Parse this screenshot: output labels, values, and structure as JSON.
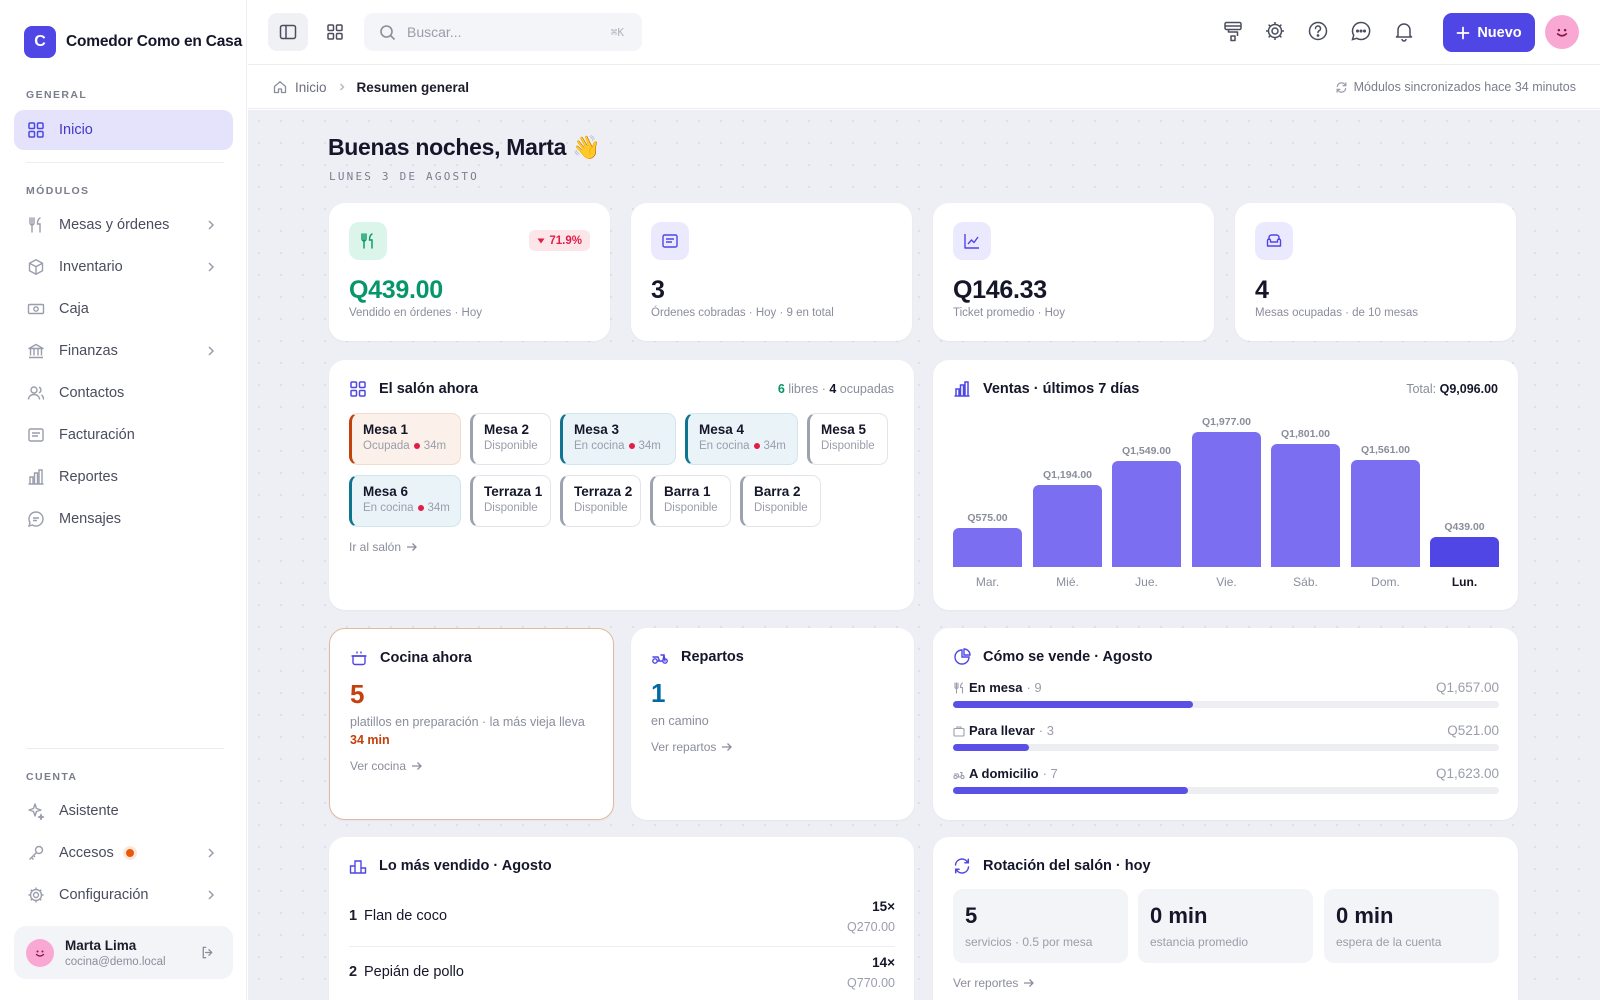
{
  "brand": {
    "initial": "C",
    "name": "Comedor Como en Casa"
  },
  "sidebar": {
    "general_label": "GENERAL",
    "modules_label": "MÓDULOS",
    "account_label": "CUENTA",
    "general_items": [
      {
        "label": "Inicio",
        "icon": "grid-icon"
      }
    ],
    "module_items": [
      {
        "label": "Mesas y órdenes",
        "icon": "utensils-icon"
      },
      {
        "label": "Inventario",
        "icon": "box-icon"
      },
      {
        "label": "Caja",
        "icon": "cash-icon"
      },
      {
        "label": "Finanzas",
        "icon": "bank-icon"
      },
      {
        "label": "Contactos",
        "icon": "users-icon"
      },
      {
        "label": "Facturación",
        "icon": "invoice-icon"
      },
      {
        "label": "Reportes",
        "icon": "bar-chart-icon"
      },
      {
        "label": "Mensajes",
        "icon": "message-icon"
      }
    ],
    "account_items": [
      {
        "label": "Asistente",
        "icon": "sparkle-icon"
      },
      {
        "label": "Accesos",
        "icon": "key-icon"
      },
      {
        "label": "Configuración",
        "icon": "gear-icon"
      }
    ],
    "user": {
      "name": "Marta Lima",
      "email": "cocina@demo.local"
    }
  },
  "topbar": {
    "search_placeholder": "Buscar...",
    "search_shortcut": "⌘K",
    "new_label": "Nuevo"
  },
  "breadcrumb": {
    "root": "Inicio",
    "current": "Resumen general",
    "sync": "Módulos sincronizados hace 34 minutos"
  },
  "greeting": {
    "title": "Buenas noches, Marta 👋",
    "date": "LUNES 3 DE AGOSTO"
  },
  "kpis": [
    {
      "value": "Q439.00",
      "sub": "Vendido en órdenes · Hoy",
      "delta": "71.9%",
      "color": "#059669"
    },
    {
      "value": "3",
      "sub": "Órdenes cobradas · Hoy · 9 en total"
    },
    {
      "value": "Q146.33",
      "sub": "Ticket promedio · Hoy"
    },
    {
      "value": "4",
      "sub": "Mesas ocupadas · de 10 mesas"
    }
  ],
  "salon": {
    "title": "El salón ahora",
    "free_count": "6",
    "free_label": "libres",
    "occupied_count": "4",
    "occupied_label": "ocupadas",
    "link": "Ir al salón",
    "tables": [
      {
        "name": "Mesa 1",
        "status": "Ocupada",
        "time": "34m",
        "state": "occupied"
      },
      {
        "name": "Mesa 2",
        "status": "Disponible",
        "time": "",
        "state": "free"
      },
      {
        "name": "Mesa 3",
        "status": "En cocina",
        "time": "34m",
        "state": "kitchen"
      },
      {
        "name": "Mesa 4",
        "status": "En cocina",
        "time": "34m",
        "state": "kitchen"
      },
      {
        "name": "Mesa 5",
        "status": "Disponible",
        "time": "",
        "state": "free"
      },
      {
        "name": "Mesa 6",
        "status": "En cocina",
        "time": "34m",
        "state": "kitchen"
      },
      {
        "name": "Terraza 1",
        "status": "Disponible",
        "time": "",
        "state": "free"
      },
      {
        "name": "Terraza 2",
        "status": "Disponible",
        "time": "",
        "state": "free"
      },
      {
        "name": "Barra 1",
        "status": "Disponible",
        "time": "",
        "state": "free"
      },
      {
        "name": "Barra 2",
        "status": "Disponible",
        "time": "",
        "state": "free"
      }
    ]
  },
  "sales": {
    "title": "Ventas · últimos 7 días",
    "total_label": "Total:",
    "total_value": "Q9,096.00"
  },
  "chart_data": {
    "type": "bar",
    "title": "Ventas · últimos 7 días",
    "categories": [
      "Mar.",
      "Mié.",
      "Jue.",
      "Vie.",
      "Sáb.",
      "Dom.",
      "Lun."
    ],
    "values": [
      575,
      1194,
      1549,
      1977,
      1801,
      1561,
      439
    ],
    "value_labels": [
      "Q575.00",
      "Q1,194.00",
      "Q1,549.00",
      "Q1,977.00",
      "Q1,801.00",
      "Q1,561.00",
      "Q439.00"
    ],
    "highlight_index": 6,
    "ylim": [
      0,
      1977
    ],
    "colors": {
      "bar": "#7b6ef0",
      "highlight": "#4f46e5"
    }
  },
  "kitchen": {
    "title": "Cocina ahora",
    "count": "5",
    "desc": "platillos en preparación · la más vieja lleva",
    "oldest": "34 min",
    "link": "Ver cocina"
  },
  "delivery": {
    "title": "Repartos",
    "count": "1",
    "desc": "en camino",
    "link": "Ver repartos"
  },
  "channels": {
    "title": "Cómo se vende · Agosto",
    "items": [
      {
        "label": "En mesa",
        "count": "· 9",
        "amount": "Q1,657.00",
        "share": 0.44,
        "icon": "utensils-icon"
      },
      {
        "label": "Para llevar",
        "count": "· 3",
        "amount": "Q521.00",
        "share": 0.14,
        "icon": "bag-icon"
      },
      {
        "label": "A domicilio",
        "count": "· 7",
        "amount": "Q1,623.00",
        "share": 0.43,
        "icon": "scooter-icon"
      }
    ]
  },
  "top_sellers": {
    "title": "Lo más vendido · Agosto",
    "items": [
      {
        "rank": "1",
        "name": "Flan de coco",
        "qty": "15×",
        "amount": "Q270.00"
      },
      {
        "rank": "2",
        "name": "Pepián de pollo",
        "qty": "14×",
        "amount": "Q770.00"
      }
    ]
  },
  "rotation": {
    "title": "Rotación del salón · hoy",
    "link": "Ver reportes",
    "stats": [
      {
        "value": "5",
        "label": "servicios · 0.5 por mesa"
      },
      {
        "value": "0 min",
        "label": "estancia promedio"
      },
      {
        "value": "0 min",
        "label": "espera de la cuenta"
      }
    ]
  }
}
